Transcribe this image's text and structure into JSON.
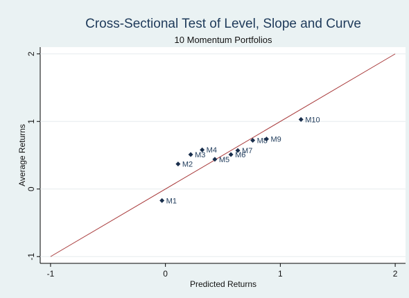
{
  "chart_data": {
    "type": "scatter",
    "title": "Cross-Sectional Test of Level, Slope and Curve",
    "subtitle": "10 Momentum Portfolios",
    "x_label": "Predicted Returns",
    "y_label": "Average Returns",
    "labels": [
      "M1",
      "M2",
      "M3",
      "M4",
      "M5",
      "M6",
      "M7",
      "M8",
      "M9",
      "M10"
    ],
    "x": [
      -0.03,
      0.11,
      0.22,
      0.32,
      0.43,
      0.57,
      0.63,
      0.76,
      0.88,
      1.18
    ],
    "values": [
      -0.17,
      0.37,
      0.51,
      0.58,
      0.44,
      0.51,
      0.57,
      0.72,
      0.74,
      1.03
    ],
    "color": "#1a2f4d",
    "line": {
      "x": [
        -1,
        2
      ],
      "y": [
        -1,
        2
      ],
      "color": "#a8393a"
    },
    "xlim": [
      -1.09,
      2.09
    ],
    "ylim": [
      -1.1,
      2.1
    ],
    "xticks": [
      -1,
      0,
      1,
      2
    ],
    "yticks": [
      -1,
      0,
      1,
      2
    ],
    "grid": true
  }
}
